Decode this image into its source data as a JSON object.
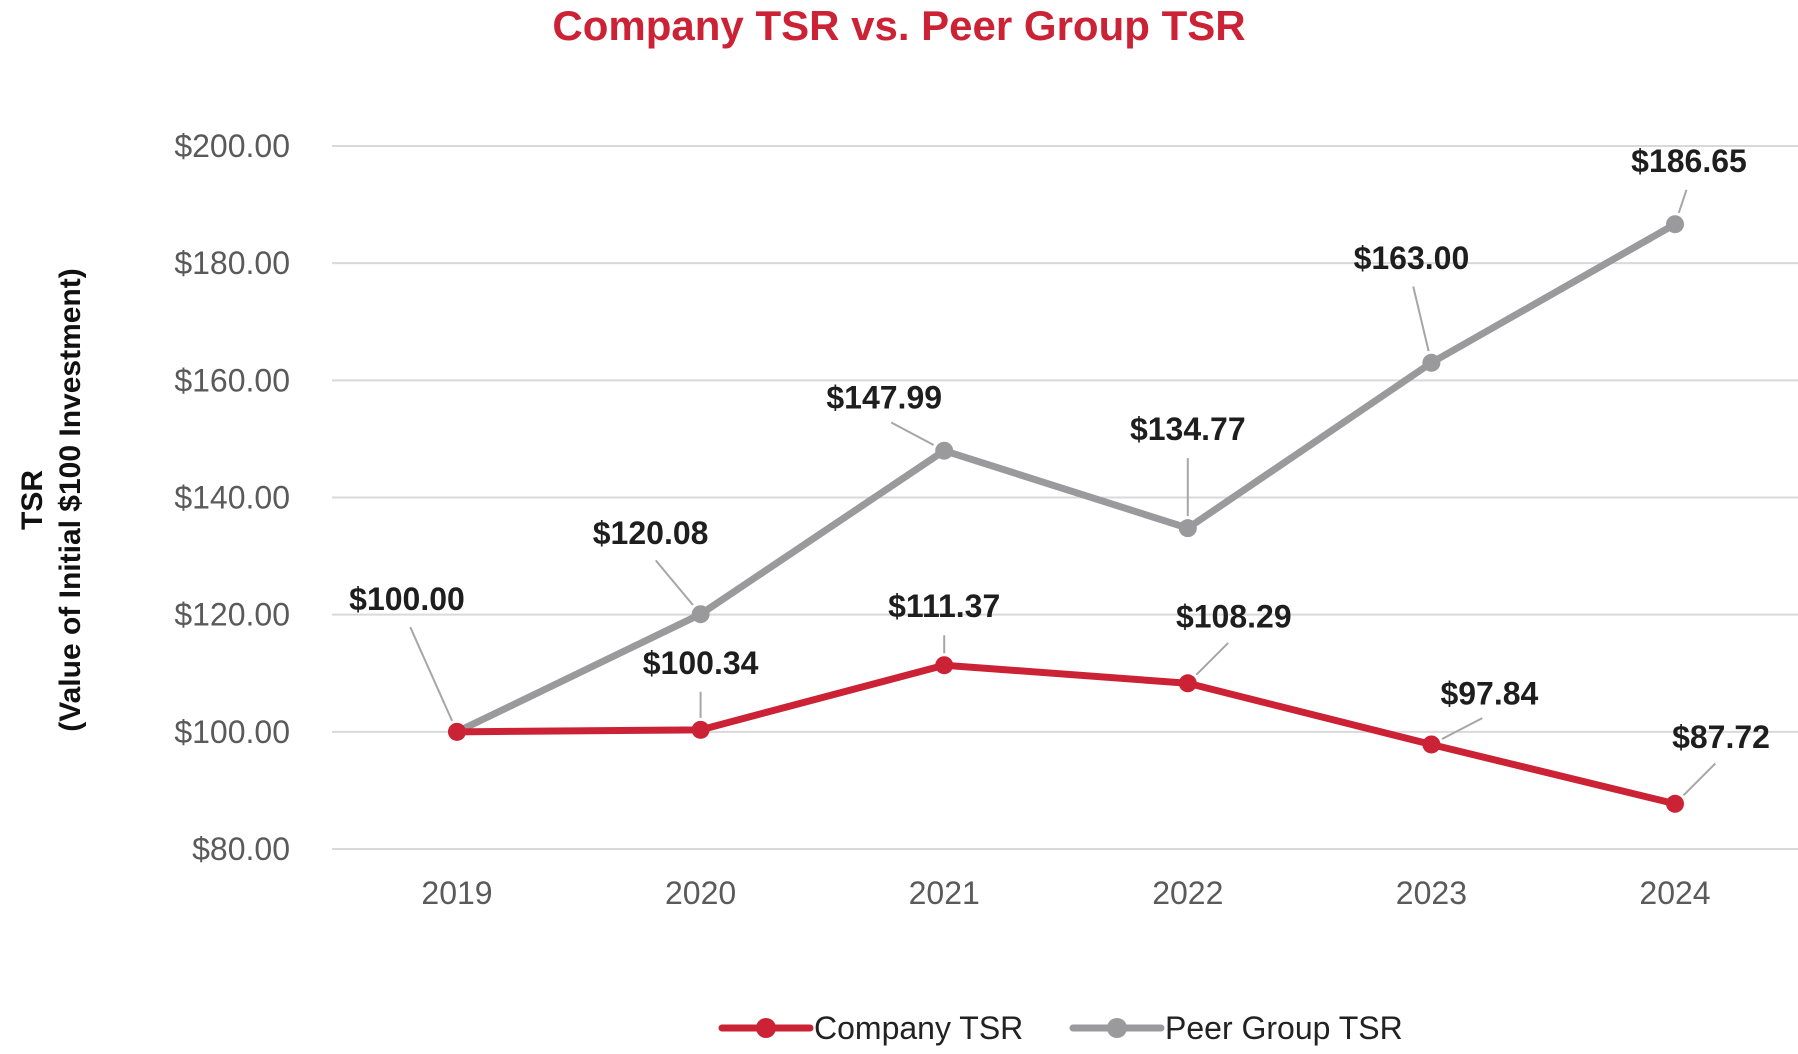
{
  "chart_data": {
    "type": "line",
    "title": "Company TSR vs. Peer Group TSR",
    "ylabel_line1": "TSR",
    "ylabel_line2": "(Value of Initial $100 Investment)",
    "xlabel": "",
    "categories": [
      "2019",
      "2020",
      "2021",
      "2022",
      "2023",
      "2024"
    ],
    "ylim": [
      80,
      200
    ],
    "yticks": [
      80,
      100,
      120,
      140,
      160,
      180,
      200
    ],
    "ytick_labels": [
      "$80.00",
      "$100.00",
      "$120.00",
      "$140.00",
      "$160.00",
      "$180.00",
      "$200.00"
    ],
    "grid": true,
    "legend_position": "bottom-center",
    "series": [
      {
        "name": "Company TSR",
        "color": "#cc2236",
        "values": [
          100.0,
          100.34,
          111.37,
          108.29,
          97.84,
          87.72
        ],
        "labels": [
          "",
          "$100.34",
          "$111.37",
          "$108.29",
          "$97.84",
          "$87.72"
        ]
      },
      {
        "name": "Peer Group TSR",
        "color": "#9a9a9c",
        "values": [
          100.0,
          120.08,
          147.99,
          134.77,
          163.0,
          186.65
        ],
        "labels": [
          "$100.00",
          "$120.08",
          "$147.99",
          "$134.77",
          "$163.00",
          "$186.65"
        ]
      }
    ],
    "colors": {
      "title": "#cc2236",
      "grid": "#d9d9d9",
      "leader": "#a6a6a6"
    }
  }
}
